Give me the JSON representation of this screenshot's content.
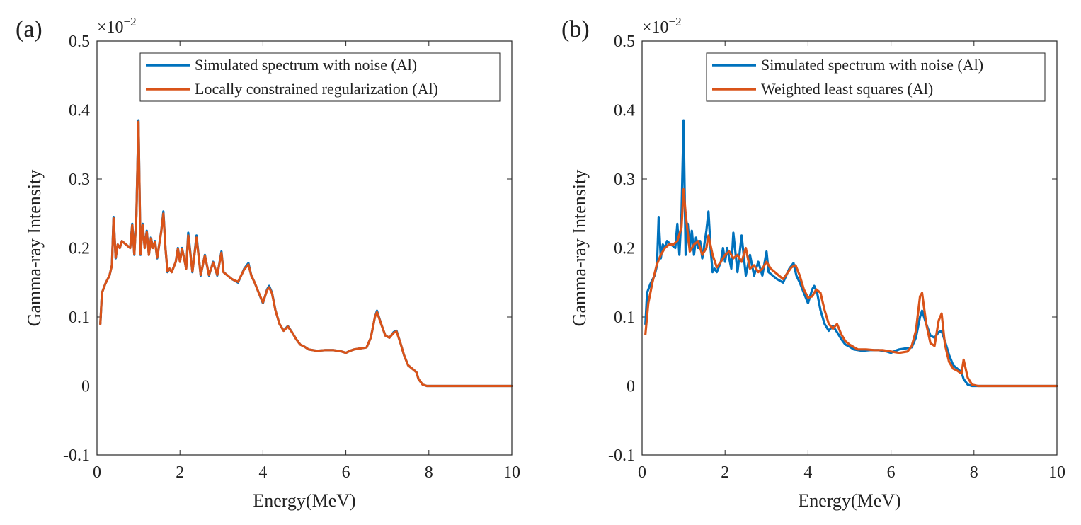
{
  "chart_data": [
    {
      "panel_label": "(a)",
      "type": "line",
      "xlabel": "Energy(MeV)",
      "ylabel": "Gamma-ray Intensity",
      "xlim": [
        0,
        10
      ],
      "ylim": [
        -0.1,
        0.5
      ],
      "xticks": [
        0,
        2,
        4,
        6,
        8,
        10
      ],
      "yticks": [
        -0.1,
        0,
        0.1,
        0.2,
        0.3,
        0.4,
        0.5
      ],
      "xtick_labels": [
        "0",
        "2",
        "4",
        "6",
        "8",
        "10"
      ],
      "ytick_labels": [
        "-0.1",
        "0",
        "0.1",
        "0.2",
        "0.3",
        "0.4",
        "0.5"
      ],
      "y_exponent": {
        "base": "×10",
        "power": "−2"
      },
      "legend_position": "top-right",
      "series": [
        {
          "name": "Simulated spectrum with noise (Al)",
          "color": "#0072BD",
          "x": [
            0.08,
            0.12,
            0.2,
            0.3,
            0.36,
            0.4,
            0.45,
            0.5,
            0.55,
            0.6,
            0.7,
            0.8,
            0.85,
            0.9,
            0.95,
            1.0,
            1.05,
            1.1,
            1.15,
            1.2,
            1.25,
            1.3,
            1.35,
            1.4,
            1.45,
            1.5,
            1.55,
            1.6,
            1.65,
            1.7,
            1.75,
            1.8,
            1.9,
            1.95,
            2.0,
            2.05,
            2.1,
            2.15,
            2.2,
            2.3,
            2.4,
            2.5,
            2.6,
            2.7,
            2.8,
            2.9,
            3.0,
            3.05,
            3.15,
            3.25,
            3.4,
            3.55,
            3.65,
            3.72,
            3.8,
            3.9,
            4.0,
            4.1,
            4.15,
            4.22,
            4.3,
            4.4,
            4.5,
            4.6,
            4.7,
            4.8,
            4.9,
            5.0,
            5.1,
            5.3,
            5.5,
            5.7,
            5.9,
            6.0,
            6.1,
            6.2,
            6.4,
            6.5,
            6.6,
            6.7,
            6.75,
            6.85,
            6.95,
            7.05,
            7.15,
            7.22,
            7.3,
            7.4,
            7.5,
            7.6,
            7.7,
            7.75,
            7.85,
            7.95,
            8.05,
            8.2,
            8.5,
            9.0,
            9.5,
            10.0
          ],
          "values": [
            0.09,
            0.135,
            0.148,
            0.16,
            0.175,
            0.245,
            0.185,
            0.205,
            0.2,
            0.21,
            0.205,
            0.2,
            0.235,
            0.19,
            0.25,
            0.385,
            0.19,
            0.235,
            0.2,
            0.225,
            0.19,
            0.215,
            0.2,
            0.21,
            0.185,
            0.205,
            0.225,
            0.253,
            0.2,
            0.165,
            0.17,
            0.165,
            0.18,
            0.2,
            0.18,
            0.2,
            0.185,
            0.17,
            0.222,
            0.165,
            0.218,
            0.16,
            0.19,
            0.16,
            0.18,
            0.16,
            0.195,
            0.165,
            0.16,
            0.155,
            0.15,
            0.17,
            0.178,
            0.16,
            0.15,
            0.135,
            0.12,
            0.14,
            0.145,
            0.135,
            0.11,
            0.09,
            0.08,
            0.087,
            0.078,
            0.068,
            0.06,
            0.057,
            0.053,
            0.051,
            0.052,
            0.052,
            0.05,
            0.048,
            0.051,
            0.053,
            0.055,
            0.056,
            0.07,
            0.1,
            0.109,
            0.09,
            0.073,
            0.07,
            0.078,
            0.08,
            0.065,
            0.045,
            0.03,
            0.025,
            0.02,
            0.01,
            0.002,
            0.0,
            0.0,
            0.0,
            0.0,
            0.0,
            0.0,
            0.0
          ]
        },
        {
          "name": "Locally constrained regularization (Al)",
          "color": "#D95319",
          "x": [
            0.08,
            0.12,
            0.2,
            0.3,
            0.36,
            0.4,
            0.45,
            0.5,
            0.55,
            0.6,
            0.7,
            0.8,
            0.85,
            0.9,
            0.95,
            1.0,
            1.05,
            1.1,
            1.15,
            1.2,
            1.25,
            1.3,
            1.35,
            1.4,
            1.45,
            1.5,
            1.55,
            1.6,
            1.65,
            1.7,
            1.75,
            1.8,
            1.9,
            1.95,
            2.0,
            2.05,
            2.1,
            2.15,
            2.2,
            2.3,
            2.4,
            2.5,
            2.6,
            2.7,
            2.8,
            2.9,
            3.0,
            3.05,
            3.15,
            3.25,
            3.4,
            3.55,
            3.65,
            3.72,
            3.8,
            3.9,
            4.0,
            4.1,
            4.15,
            4.22,
            4.3,
            4.4,
            4.5,
            4.6,
            4.7,
            4.8,
            4.9,
            5.0,
            5.1,
            5.3,
            5.5,
            5.7,
            5.9,
            6.0,
            6.1,
            6.2,
            6.4,
            6.5,
            6.6,
            6.7,
            6.75,
            6.85,
            6.95,
            7.05,
            7.15,
            7.22,
            7.3,
            7.4,
            7.5,
            7.6,
            7.7,
            7.75,
            7.85,
            7.95,
            8.05,
            8.2,
            8.5,
            9.0,
            9.5,
            10.0
          ],
          "values": [
            0.09,
            0.135,
            0.148,
            0.16,
            0.175,
            0.243,
            0.186,
            0.205,
            0.2,
            0.21,
            0.205,
            0.2,
            0.233,
            0.191,
            0.248,
            0.383,
            0.191,
            0.233,
            0.2,
            0.223,
            0.19,
            0.214,
            0.2,
            0.209,
            0.186,
            0.205,
            0.224,
            0.25,
            0.2,
            0.166,
            0.17,
            0.165,
            0.18,
            0.199,
            0.18,
            0.199,
            0.185,
            0.17,
            0.218,
            0.166,
            0.215,
            0.161,
            0.189,
            0.161,
            0.179,
            0.161,
            0.193,
            0.165,
            0.16,
            0.155,
            0.151,
            0.169,
            0.176,
            0.16,
            0.15,
            0.135,
            0.121,
            0.139,
            0.143,
            0.134,
            0.11,
            0.09,
            0.08,
            0.086,
            0.078,
            0.068,
            0.06,
            0.057,
            0.053,
            0.051,
            0.052,
            0.052,
            0.05,
            0.048,
            0.051,
            0.053,
            0.055,
            0.056,
            0.07,
            0.1,
            0.107,
            0.09,
            0.073,
            0.07,
            0.077,
            0.079,
            0.065,
            0.045,
            0.03,
            0.025,
            0.02,
            0.01,
            0.002,
            0.0,
            0.0,
            0.0,
            0.0,
            0.0,
            0.0,
            0.0
          ]
        }
      ]
    },
    {
      "panel_label": "(b)",
      "type": "line",
      "xlabel": "Energy(MeV)",
      "ylabel": "Gamma-ray Intensity",
      "xlim": [
        0,
        10
      ],
      "ylim": [
        -0.1,
        0.5
      ],
      "xticks": [
        0,
        2,
        4,
        6,
        8,
        10
      ],
      "yticks": [
        -0.1,
        0,
        0.1,
        0.2,
        0.3,
        0.4,
        0.5
      ],
      "xtick_labels": [
        "0",
        "2",
        "4",
        "6",
        "8",
        "10"
      ],
      "ytick_labels": [
        "-0.1",
        "0",
        "0.1",
        "0.2",
        "0.3",
        "0.4",
        "0.5"
      ],
      "y_exponent": {
        "base": "×10",
        "power": "−2"
      },
      "legend_position": "top-right",
      "series": [
        {
          "name": "Simulated spectrum with noise (Al)",
          "color": "#0072BD",
          "x": [
            0.08,
            0.12,
            0.2,
            0.3,
            0.36,
            0.4,
            0.45,
            0.5,
            0.55,
            0.6,
            0.7,
            0.8,
            0.85,
            0.9,
            0.95,
            1.0,
            1.05,
            1.1,
            1.15,
            1.2,
            1.25,
            1.3,
            1.35,
            1.4,
            1.45,
            1.5,
            1.55,
            1.6,
            1.65,
            1.7,
            1.75,
            1.8,
            1.9,
            1.95,
            2.0,
            2.05,
            2.1,
            2.15,
            2.2,
            2.3,
            2.4,
            2.5,
            2.6,
            2.7,
            2.8,
            2.9,
            3.0,
            3.05,
            3.15,
            3.25,
            3.4,
            3.55,
            3.65,
            3.72,
            3.8,
            3.9,
            4.0,
            4.1,
            4.15,
            4.22,
            4.3,
            4.4,
            4.5,
            4.6,
            4.7,
            4.8,
            4.9,
            5.0,
            5.1,
            5.3,
            5.5,
            5.7,
            5.9,
            6.0,
            6.1,
            6.2,
            6.4,
            6.5,
            6.6,
            6.7,
            6.75,
            6.85,
            6.95,
            7.05,
            7.15,
            7.22,
            7.3,
            7.4,
            7.5,
            7.6,
            7.7,
            7.75,
            7.85,
            7.95,
            8.05,
            8.2,
            8.5,
            9.0,
            9.5,
            10.0
          ],
          "values": [
            0.09,
            0.135,
            0.148,
            0.16,
            0.175,
            0.245,
            0.185,
            0.205,
            0.2,
            0.21,
            0.205,
            0.2,
            0.235,
            0.19,
            0.25,
            0.385,
            0.19,
            0.235,
            0.2,
            0.225,
            0.19,
            0.215,
            0.2,
            0.21,
            0.185,
            0.205,
            0.225,
            0.253,
            0.2,
            0.165,
            0.17,
            0.165,
            0.18,
            0.2,
            0.18,
            0.2,
            0.185,
            0.17,
            0.222,
            0.165,
            0.218,
            0.16,
            0.19,
            0.16,
            0.18,
            0.16,
            0.195,
            0.165,
            0.16,
            0.155,
            0.15,
            0.17,
            0.178,
            0.16,
            0.15,
            0.135,
            0.12,
            0.14,
            0.145,
            0.135,
            0.11,
            0.09,
            0.08,
            0.087,
            0.078,
            0.068,
            0.06,
            0.057,
            0.053,
            0.051,
            0.052,
            0.052,
            0.05,
            0.048,
            0.051,
            0.053,
            0.055,
            0.056,
            0.07,
            0.1,
            0.109,
            0.09,
            0.073,
            0.07,
            0.078,
            0.08,
            0.065,
            0.045,
            0.03,
            0.025,
            0.02,
            0.01,
            0.002,
            0.0,
            0.0,
            0.0,
            0.0,
            0.0,
            0.0,
            0.0
          ]
        },
        {
          "name": "Weighted least squares (Al)",
          "color": "#D95319",
          "x": [
            0.08,
            0.15,
            0.25,
            0.35,
            0.45,
            0.55,
            0.65,
            0.75,
            0.85,
            0.95,
            1.0,
            1.05,
            1.15,
            1.25,
            1.35,
            1.45,
            1.55,
            1.6,
            1.7,
            1.8,
            1.9,
            2.0,
            2.1,
            2.2,
            2.3,
            2.4,
            2.5,
            2.6,
            2.7,
            2.8,
            2.9,
            3.0,
            3.1,
            3.2,
            3.4,
            3.6,
            3.7,
            3.8,
            3.9,
            4.0,
            4.1,
            4.2,
            4.3,
            4.4,
            4.5,
            4.6,
            4.7,
            4.8,
            4.9,
            5.0,
            5.2,
            5.4,
            5.6,
            5.8,
            6.0,
            6.2,
            6.4,
            6.5,
            6.6,
            6.7,
            6.75,
            6.85,
            6.95,
            7.05,
            7.15,
            7.22,
            7.3,
            7.4,
            7.5,
            7.6,
            7.7,
            7.75,
            7.85,
            7.95,
            8.1,
            8.3,
            8.6,
            9.0,
            9.5,
            10.0
          ],
          "values": [
            0.075,
            0.12,
            0.15,
            0.175,
            0.19,
            0.2,
            0.205,
            0.205,
            0.21,
            0.23,
            0.285,
            0.25,
            0.195,
            0.205,
            0.21,
            0.19,
            0.2,
            0.218,
            0.19,
            0.172,
            0.18,
            0.19,
            0.195,
            0.185,
            0.19,
            0.18,
            0.2,
            0.17,
            0.175,
            0.165,
            0.17,
            0.18,
            0.17,
            0.165,
            0.155,
            0.172,
            0.175,
            0.16,
            0.14,
            0.128,
            0.13,
            0.14,
            0.135,
            0.11,
            0.09,
            0.083,
            0.09,
            0.075,
            0.065,
            0.06,
            0.053,
            0.053,
            0.052,
            0.052,
            0.05,
            0.048,
            0.05,
            0.058,
            0.08,
            0.13,
            0.135,
            0.09,
            0.062,
            0.058,
            0.095,
            0.105,
            0.06,
            0.035,
            0.025,
            0.022,
            0.018,
            0.038,
            0.012,
            0.002,
            0.0,
            0.0,
            0.0,
            0.0,
            0.0,
            0.0
          ]
        }
      ]
    }
  ]
}
